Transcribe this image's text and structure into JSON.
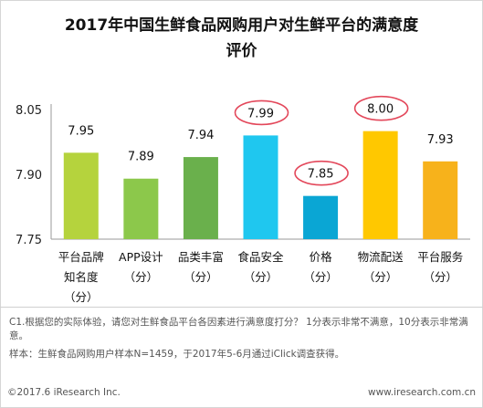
{
  "title_line1": "2017年中国生鲜食品网购用户对生鲜平台的满意度",
  "title_line2": "评价",
  "chart_data": {
    "type": "bar",
    "categories": [
      [
        "平台品牌",
        "知名度",
        "（分）"
      ],
      [
        "APP设计",
        "（分）"
      ],
      [
        "品类丰富",
        "（分）"
      ],
      [
        "食品安全",
        "（分）"
      ],
      [
        "价格",
        "（分）"
      ],
      [
        "物流配送",
        "（分）"
      ],
      [
        "平台服务",
        "（分）"
      ]
    ],
    "values": [
      7.95,
      7.89,
      7.94,
      7.99,
      7.85,
      8.0,
      7.93
    ],
    "value_labels": [
      "7.95",
      "7.89",
      "7.94",
      "7.99",
      "7.85",
      "8.00",
      "7.93"
    ],
    "bar_colors": [
      "#b5d33d",
      "#8cc84b",
      "#6ab04c",
      "#1fc7ef",
      "#0aa6d4",
      "#ffc800",
      "#f7b21b"
    ],
    "circled": [
      3,
      4,
      5
    ],
    "circle_color": "#e3475a",
    "ylim": [
      7.75,
      8.05
    ],
    "yticks": [
      "8.05",
      "7.90",
      "7.75"
    ],
    "ytick_values": [
      8.05,
      7.9,
      7.75
    ]
  },
  "note1": "C1.根据您的实际体验，请您对生鲜食品平台各因素进行满意度打分？ 1分表示非常不满意，10分表示非常满意。",
  "note2": "样本：生鲜食品网购用户样本N=1459，于2017年5-6月通过iClick调查获得。",
  "footer_left": "©2017.6 iResearch Inc.",
  "footer_right": "www.iresearch.com.cn"
}
